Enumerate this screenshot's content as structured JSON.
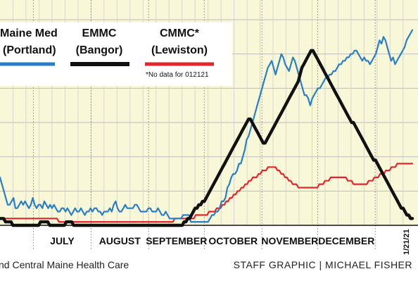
{
  "chart_data": {
    "type": "line",
    "x_start": "2020-06-13",
    "x_end": "2021-01-21",
    "end_label": "1/21/21",
    "grid": true,
    "month_labels": [
      "JULY",
      "AUGUST",
      "SEPTEMBER",
      "OCTOBER",
      "NOVEMBER",
      "DECEMBER"
    ],
    "series": [
      {
        "name": "Maine Med",
        "name_line2": "(Portland)",
        "color": "#2a7fc4",
        "values": [
          14,
          12,
          10,
          8,
          6,
          6,
          7,
          8,
          5,
          5,
          6,
          7,
          6,
          7,
          6,
          5,
          6,
          8,
          6,
          5,
          6,
          6,
          5,
          7,
          6,
          5,
          6,
          5,
          6,
          5,
          4,
          4,
          5,
          5,
          4,
          5,
          4,
          3,
          4,
          5,
          4,
          4,
          5,
          4,
          3,
          4,
          4,
          5,
          4,
          5,
          5,
          4,
          4,
          3,
          4,
          4,
          4,
          5,
          4,
          6,
          7,
          5,
          4,
          4,
          5,
          6,
          5,
          5,
          5,
          5,
          6,
          6,
          5,
          4,
          4,
          4,
          4,
          5,
          5,
          4,
          4,
          4,
          5,
          4,
          3,
          3,
          4,
          3,
          2,
          2,
          2,
          2,
          2,
          2,
          2,
          3,
          3,
          3,
          3,
          1,
          1,
          1,
          1,
          1,
          1,
          1,
          1,
          1,
          1,
          2,
          3,
          3,
          4,
          4,
          5,
          7,
          7,
          8,
          11,
          12,
          14,
          15,
          15,
          16,
          18,
          18,
          20,
          22,
          25,
          26,
          28,
          30,
          32,
          34,
          36,
          38,
          40,
          42,
          44,
          46,
          47,
          48,
          46,
          44,
          46,
          48,
          50,
          49,
          47,
          46,
          45,
          47,
          49,
          48,
          46,
          44,
          42,
          40,
          38,
          38,
          37,
          35,
          37,
          38,
          39,
          40,
          40,
          41,
          42,
          43,
          43,
          44,
          44,
          45,
          45,
          46,
          47,
          47,
          48,
          48,
          49,
          49,
          50,
          50,
          51,
          51,
          50,
          49,
          48,
          49,
          48,
          48,
          47,
          48,
          49,
          50,
          52,
          54,
          53,
          55,
          54,
          52,
          50,
          48,
          49,
          47,
          48,
          49,
          50,
          51,
          52,
          54,
          55,
          56,
          57
        ]
      },
      {
        "name": "EMMC",
        "name_line2": "(Bangor)",
        "color": "#111111",
        "values": [
          2,
          2,
          2,
          1,
          1,
          1,
          1,
          0,
          0,
          0,
          0,
          0,
          0,
          0,
          0,
          0,
          0,
          0,
          0,
          0,
          0,
          0,
          1,
          1,
          1,
          1,
          1,
          0,
          0,
          0,
          0,
          0,
          0,
          0,
          0,
          0,
          1,
          1,
          1,
          1,
          0,
          0,
          0,
          0,
          0,
          0,
          0,
          0,
          0,
          0,
          0,
          0,
          0,
          0,
          0,
          0,
          0,
          0,
          0,
          0,
          0,
          0,
          0,
          0,
          0,
          0,
          0,
          0,
          0,
          0,
          0,
          0,
          0,
          0,
          0,
          0,
          0,
          0,
          0,
          0,
          0,
          0,
          0,
          0,
          0,
          0,
          0,
          0,
          0,
          0,
          0,
          0,
          0,
          0,
          0,
          0,
          0,
          0,
          0,
          0,
          1,
          1,
          2,
          2,
          3,
          4,
          5,
          5,
          6,
          6,
          7,
          7,
          8,
          9,
          10,
          11,
          12,
          13,
          14,
          15,
          16,
          17,
          18,
          19,
          20,
          21,
          22,
          23,
          24,
          25,
          26,
          27,
          28,
          29,
          30,
          31,
          31,
          30,
          29,
          28,
          27,
          26,
          25,
          24,
          24,
          25,
          26,
          27,
          28,
          29,
          30,
          31,
          32,
          33,
          34,
          35,
          36,
          37,
          38,
          39,
          40,
          41,
          42,
          44,
          46,
          47,
          48,
          49,
          50,
          51,
          51,
          50,
          49,
          48,
          47,
          46,
          45,
          44,
          43,
          42,
          41,
          40,
          39,
          38,
          37,
          36,
          35,
          34,
          33,
          32,
          31,
          30,
          30,
          29,
          28,
          27,
          26,
          25,
          24,
          23,
          22,
          21,
          20,
          19,
          19,
          18,
          17,
          16,
          15,
          14,
          13,
          12,
          11,
          10,
          9,
          8,
          7,
          6,
          5,
          5,
          4,
          3,
          3,
          2,
          2
        ]
      },
      {
        "name": "CMMC*",
        "name_line2": "(Lewiston)",
        "color": "#e3262d",
        "note": "*No data for 012121",
        "values": [
          2,
          2,
          2,
          2,
          2,
          2,
          2,
          2,
          2,
          2,
          2,
          2,
          2,
          2,
          2,
          2,
          2,
          2,
          2,
          2,
          2,
          2,
          2,
          2,
          2,
          2,
          2,
          2,
          2,
          2,
          2,
          1,
          1,
          1,
          1,
          1,
          1,
          1,
          1,
          1,
          1,
          1,
          1,
          1,
          1,
          1,
          1,
          1,
          1,
          1,
          1,
          1,
          1,
          1,
          1,
          1,
          1,
          1,
          1,
          1,
          1,
          1,
          1,
          1,
          1,
          1,
          1,
          1,
          1,
          1,
          1,
          1,
          1,
          1,
          1,
          1,
          1,
          1,
          1,
          1,
          1,
          1,
          1,
          1,
          1,
          1,
          1,
          1,
          1,
          1,
          1,
          1,
          2,
          2,
          2,
          2,
          2,
          2,
          2,
          2,
          2,
          2,
          2,
          3,
          3,
          3,
          3,
          3,
          3,
          3,
          4,
          4,
          4,
          4,
          5,
          5,
          5,
          6,
          6,
          7,
          7,
          8,
          8,
          9,
          9,
          10,
          10,
          11,
          11,
          12,
          12,
          13,
          13,
          14,
          14,
          14,
          15,
          15,
          16,
          16,
          16,
          17,
          17,
          17,
          17,
          17,
          16,
          16,
          15,
          15,
          14,
          14,
          13,
          13,
          12,
          12,
          12,
          11,
          11,
          11,
          11,
          11,
          11,
          11,
          11,
          11,
          11,
          11,
          12,
          12,
          12,
          13,
          13,
          13,
          14,
          14,
          14,
          14,
          14,
          14,
          14,
          14,
          14,
          13,
          13,
          13,
          12,
          12,
          12,
          12,
          12,
          12,
          12,
          12,
          13,
          13,
          13,
          14,
          14,
          14,
          15,
          15,
          15,
          16,
          16,
          16,
          17,
          17,
          17,
          18,
          18,
          18,
          18,
          18,
          18,
          18,
          18,
          18
        ]
      }
    ]
  },
  "footer": {
    "source": "nd Central Maine Health Care",
    "credit": "STAFF GRAPHIC | MICHAEL FISHER"
  }
}
